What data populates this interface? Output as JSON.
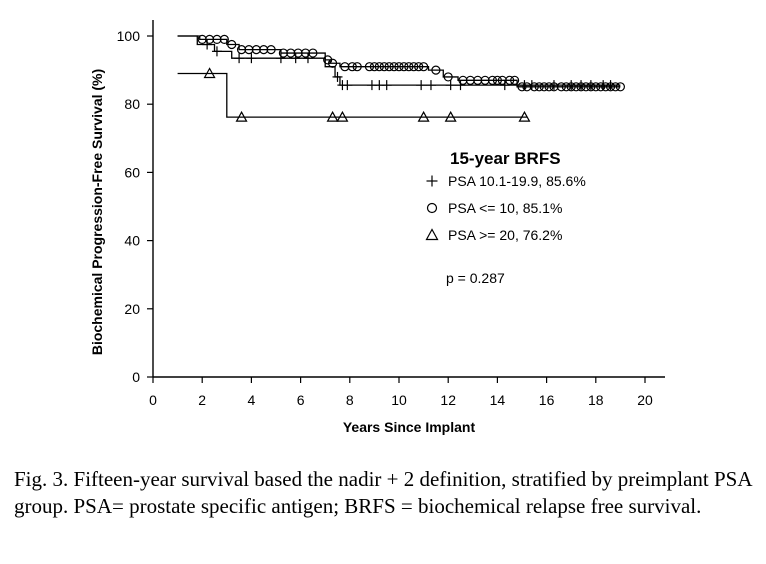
{
  "chart_data": {
    "type": "line",
    "subtype": "kaplan-meier step",
    "xlabel": "Years Since Implant",
    "ylabel": "Biochemical Progression-Free Survival (%)",
    "xlim": [
      0,
      20
    ],
    "ylim": [
      0,
      105
    ],
    "xticks": [
      "0",
      "2",
      "4",
      "6",
      "8",
      "10",
      "12",
      "14",
      "16",
      "18",
      "20"
    ],
    "yticks": [
      "0",
      "20",
      "40",
      "60",
      "80",
      "100"
    ],
    "grid": false,
    "legend_position": "center-right",
    "legend_title": "15-year BRFS",
    "p_value_text": "p = 0.287",
    "series": [
      {
        "name": "PSA 10.1-19.9, 85.6%",
        "marker": "plus",
        "symbol": "+",
        "steps": [
          [
            1.0,
            100
          ],
          [
            1.8,
            97.5
          ],
          [
            2.5,
            95.5
          ],
          [
            3.2,
            93.5
          ],
          [
            7.0,
            91
          ],
          [
            7.4,
            88
          ],
          [
            7.6,
            85.6
          ],
          [
            19.0,
            85.6
          ]
        ],
        "end_x": 19.0,
        "censored_x": [
          2.2,
          2.6,
          3.5,
          4.0,
          5.2,
          5.8,
          6.3,
          7.5,
          7.7,
          7.9,
          8.9,
          9.2,
          9.5,
          10.9,
          11.3,
          12.1,
          12.5,
          14.3,
          15.1,
          15.4,
          16.3,
          17.0,
          17.4,
          17.8,
          18.3,
          18.6
        ]
      },
      {
        "name": "PSA <= 10, 85.1%",
        "marker": "circle",
        "symbol": "O",
        "steps": [
          [
            1.0,
            100
          ],
          [
            1.9,
            99
          ],
          [
            3.0,
            97.5
          ],
          [
            3.5,
            96
          ],
          [
            5.2,
            95
          ],
          [
            7.0,
            93
          ],
          [
            7.2,
            92
          ],
          [
            7.6,
            91
          ],
          [
            11.2,
            90
          ],
          [
            11.8,
            88
          ],
          [
            12.4,
            87
          ],
          [
            14.8,
            85.1
          ],
          [
            19.0,
            85.1
          ]
        ],
        "end_x": 19.0,
        "censored_x": [
          2.0,
          2.3,
          2.6,
          2.9,
          3.2,
          3.6,
          3.9,
          4.2,
          4.5,
          4.8,
          5.3,
          5.6,
          5.9,
          6.2,
          6.5,
          7.1,
          7.3,
          7.8,
          8.1,
          8.3,
          8.8,
          9.0,
          9.2,
          9.4,
          9.6,
          9.8,
          10.0,
          10.2,
          10.4,
          10.6,
          10.8,
          11.0,
          11.5,
          12.0,
          12.6,
          12.9,
          13.2,
          13.5,
          13.8,
          14.0,
          14.2,
          14.5,
          14.7,
          15.0,
          15.2,
          15.5,
          15.7,
          15.9,
          16.1,
          16.3,
          16.6,
          16.8,
          17.0,
          17.2,
          17.4,
          17.6,
          17.8,
          18.0,
          18.2,
          18.4,
          18.6,
          18.8,
          19.0
        ]
      },
      {
        "name": "PSA >= 20, 76.2%",
        "marker": "triangle",
        "symbol": "△",
        "steps": [
          [
            1.0,
            89
          ],
          [
            3.0,
            76.2
          ],
          [
            15.2,
            76.2
          ]
        ],
        "end_x": 15.2,
        "censored_x": [
          2.3,
          3.6,
          7.3,
          7.7,
          11.0,
          12.1,
          15.1
        ]
      }
    ]
  },
  "caption": "Fig. 3.  Fifteen-year survival based the nadir + 2 definition, stratified by preimplant PSA group. PSA= prostate specific antigen; BRFS = biochemical relapse free survival."
}
